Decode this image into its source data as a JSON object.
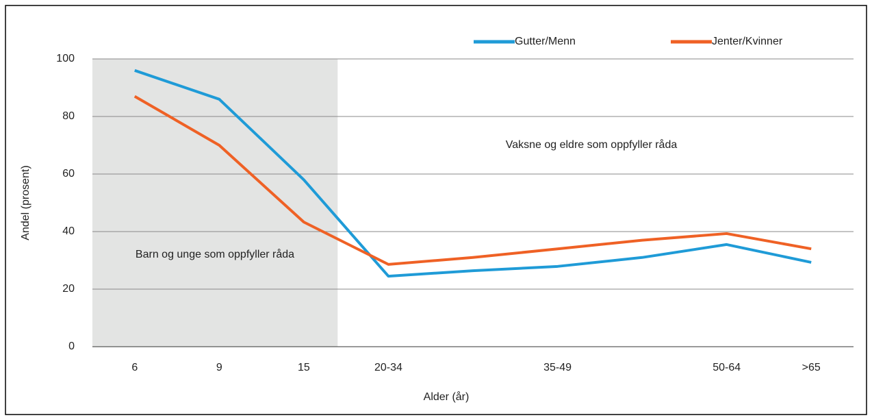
{
  "chart_data": {
    "type": "line",
    "x_label": "Alder (år)",
    "y_label": "Andel (prosent)",
    "categories": [
      "6",
      "9",
      "15",
      "20-34",
      null,
      "35-49",
      null,
      "50-64",
      ">65"
    ],
    "series": [
      {
        "name": "Gutter/Menn",
        "color": "#1f9bd7",
        "values": [
          96,
          86,
          58,
          24.5,
          26.4,
          27.9,
          31,
          35.5,
          29.3
        ]
      },
      {
        "name": "Jenter/Kvinner",
        "color": "#ef6125",
        "values": [
          87,
          70,
          43.3,
          28.6,
          31,
          34,
          37,
          39.3,
          34
        ]
      }
    ],
    "annotations": [
      "Barn og unge som oppfyller råda",
      "Vaksne og eldre som oppfyller råda"
    ],
    "ylim": [
      0,
      100
    ],
    "yticks": [
      0,
      20,
      40,
      60,
      80,
      100
    ],
    "grid": true
  }
}
